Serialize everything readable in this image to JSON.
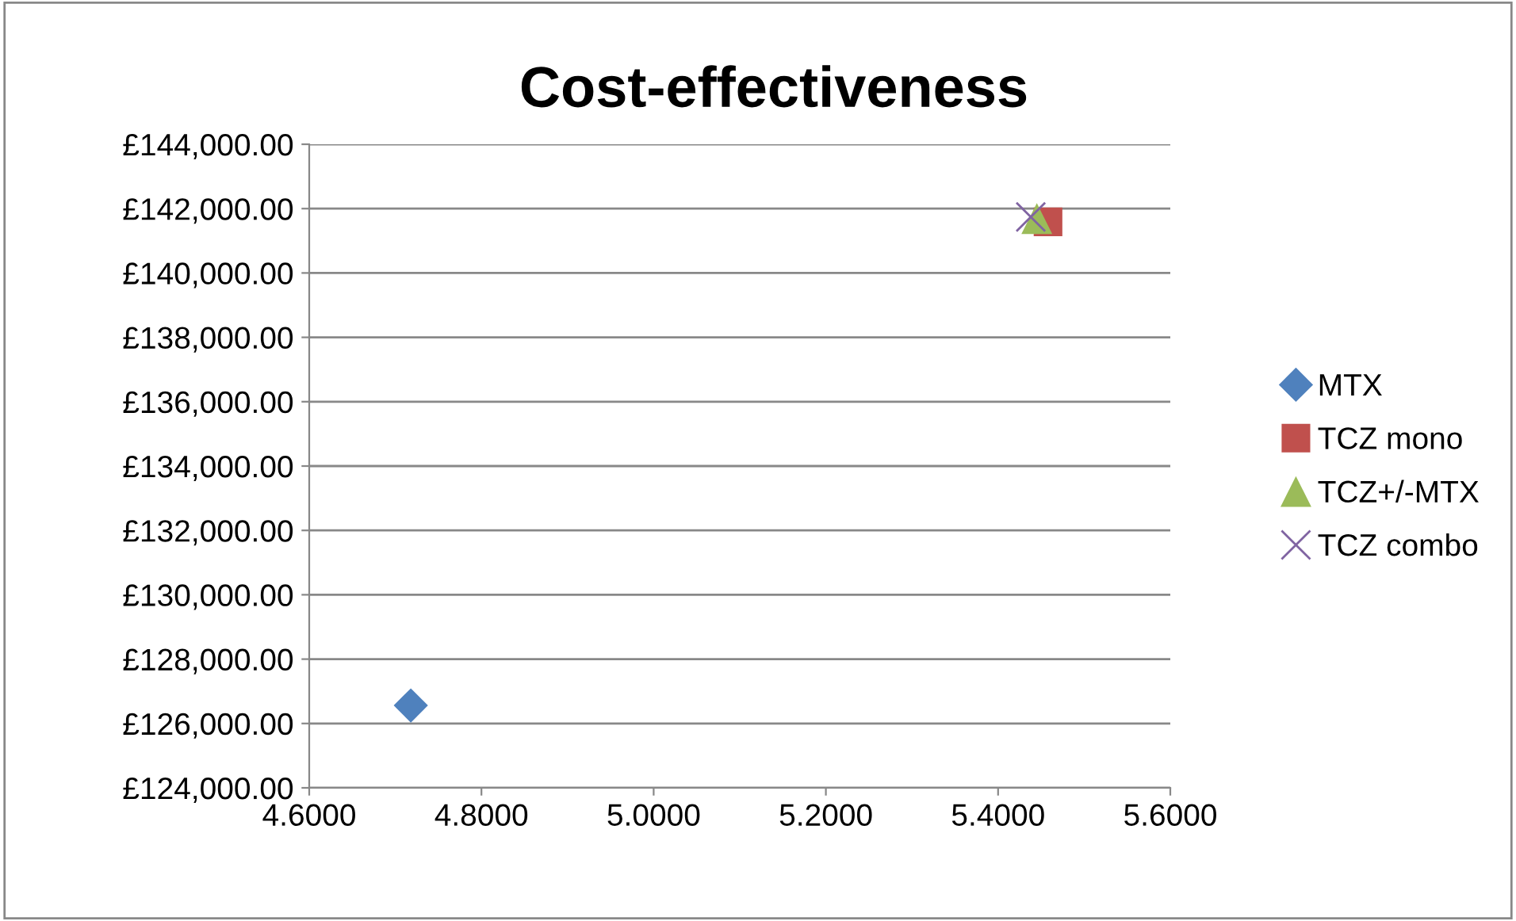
{
  "chart_data": {
    "type": "scatter",
    "title": "Cost-effectiveness",
    "series": [
      {
        "name": "MTX",
        "color": "#4f81bd",
        "marker": "diamond",
        "x": [
          4.718
        ],
        "values": [
          126560
        ]
      },
      {
        "name": "TCZ mono",
        "color": "#c0504d",
        "marker": "square",
        "x": [
          5.458
        ],
        "values": [
          141590
        ]
      },
      {
        "name": "TCZ+/-MTX",
        "color": "#9bbb59",
        "marker": "triangle",
        "x": [
          5.445
        ],
        "values": [
          141690
        ]
      },
      {
        "name": "TCZ combo",
        "color": "#8064a2",
        "marker": "cross",
        "x": [
          5.438
        ],
        "values": [
          141740
        ]
      }
    ],
    "xlim": [
      4.6,
      5.6
    ],
    "xticks": [
      {
        "value": 4.6,
        "label": "4.6000"
      },
      {
        "value": 4.8,
        "label": "4.8000"
      },
      {
        "value": 5.0,
        "label": "5.0000"
      },
      {
        "value": 5.2,
        "label": "5.2000"
      },
      {
        "value": 5.4,
        "label": "5.4000"
      },
      {
        "value": 5.6,
        "label": "5.6000"
      }
    ],
    "ylim": [
      124000,
      144000
    ],
    "yticks": [
      {
        "value": 124000,
        "label": "£124,000.00"
      },
      {
        "value": 126000,
        "label": "£126,000.00"
      },
      {
        "value": 128000,
        "label": "£128,000.00"
      },
      {
        "value": 130000,
        "label": "£130,000.00"
      },
      {
        "value": 132000,
        "label": "£132,000.00"
      },
      {
        "value": 134000,
        "label": "£134,000.00"
      },
      {
        "value": 136000,
        "label": "£136,000.00"
      },
      {
        "value": 138000,
        "label": "£138,000.00"
      },
      {
        "value": 140000,
        "label": "£140,000.00"
      },
      {
        "value": 142000,
        "label": "£142,000.00"
      },
      {
        "value": 144000,
        "label": "£144,000.00"
      }
    ],
    "grid": "y",
    "legend": "right"
  }
}
